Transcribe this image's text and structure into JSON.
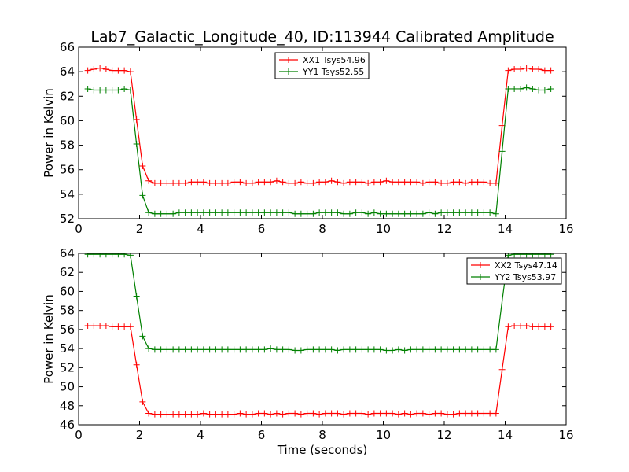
{
  "title": "Lab7_Galactic_Longitude_40, ID:113944 Calibrated Amplitude",
  "colors": {
    "red": "#ff0000",
    "green": "#008000"
  },
  "chart_data": [
    {
      "type": "line",
      "xlim": [
        0,
        16
      ],
      "ylim": [
        52,
        66
      ],
      "xticks": [
        0,
        2,
        4,
        6,
        8,
        10,
        12,
        14,
        16
      ],
      "yticks": [
        52,
        54,
        56,
        58,
        60,
        62,
        64,
        66
      ],
      "xlabel": "",
      "ylabel": "Power in Kelvin",
      "legend_placement": "upper-center",
      "x": [
        0.3,
        0.5,
        0.7,
        0.9,
        1.1,
        1.3,
        1.5,
        1.7,
        1.9,
        2.1,
        2.3,
        2.5,
        2.7,
        2.9,
        3.1,
        3.3,
        3.5,
        3.7,
        3.9,
        4.1,
        4.3,
        4.5,
        4.7,
        4.9,
        5.1,
        5.3,
        5.5,
        5.7,
        5.9,
        6.1,
        6.3,
        6.5,
        6.7,
        6.9,
        7.1,
        7.3,
        7.5,
        7.7,
        7.9,
        8.1,
        8.3,
        8.5,
        8.7,
        8.9,
        9.1,
        9.3,
        9.5,
        9.7,
        9.9,
        10.1,
        10.3,
        10.5,
        10.7,
        10.9,
        11.1,
        11.3,
        11.5,
        11.7,
        11.9,
        12.1,
        12.3,
        12.5,
        12.7,
        12.9,
        13.1,
        13.3,
        13.5,
        13.7,
        13.9,
        14.1,
        14.3,
        14.5,
        14.7,
        14.9,
        15.1,
        15.3,
        15.5
      ],
      "series": [
        {
          "name": "XX1 Tsys54.96",
          "color": "#ff0000",
          "values": [
            64.1,
            64.2,
            64.3,
            64.2,
            64.1,
            64.1,
            64.1,
            64.0,
            60.1,
            56.3,
            55.1,
            54.9,
            54.9,
            54.9,
            54.9,
            54.9,
            54.9,
            55.0,
            55.0,
            55.0,
            54.9,
            54.9,
            54.9,
            54.9,
            55.0,
            55.0,
            54.9,
            54.9,
            55.0,
            55.0,
            55.0,
            55.1,
            55.0,
            54.9,
            54.9,
            55.0,
            54.9,
            54.9,
            55.0,
            55.0,
            55.1,
            55.0,
            54.9,
            55.0,
            55.0,
            55.0,
            54.9,
            55.0,
            55.0,
            55.1,
            55.0,
            55.0,
            55.0,
            55.0,
            55.0,
            54.9,
            55.0,
            55.0,
            54.9,
            54.9,
            55.0,
            55.0,
            54.9,
            55.0,
            55.0,
            55.0,
            54.9,
            54.9,
            59.6,
            64.1,
            64.2,
            64.2,
            64.3,
            64.2,
            64.2,
            64.1,
            64.1
          ]
        },
        {
          "name": "YY1 Tsys52.55",
          "color": "#008000",
          "values": [
            62.6,
            62.5,
            62.5,
            62.5,
            62.5,
            62.5,
            62.6,
            62.5,
            58.1,
            53.9,
            52.5,
            52.4,
            52.4,
            52.4,
            52.4,
            52.5,
            52.5,
            52.5,
            52.5,
            52.5,
            52.5,
            52.5,
            52.5,
            52.5,
            52.5,
            52.5,
            52.5,
            52.5,
            52.5,
            52.5,
            52.5,
            52.5,
            52.5,
            52.5,
            52.4,
            52.4,
            52.4,
            52.4,
            52.5,
            52.5,
            52.5,
            52.5,
            52.4,
            52.4,
            52.5,
            52.5,
            52.4,
            52.5,
            52.4,
            52.4,
            52.4,
            52.4,
            52.4,
            52.4,
            52.4,
            52.4,
            52.5,
            52.4,
            52.5,
            52.5,
            52.5,
            52.5,
            52.5,
            52.5,
            52.5,
            52.5,
            52.5,
            52.4,
            57.5,
            62.6,
            62.6,
            62.6,
            62.7,
            62.6,
            62.5,
            62.5,
            62.6
          ]
        }
      ]
    },
    {
      "type": "line",
      "xlim": [
        0,
        16
      ],
      "ylim": [
        46,
        64
      ],
      "xticks": [
        0,
        2,
        4,
        6,
        8,
        10,
        12,
        14,
        16
      ],
      "yticks": [
        46,
        48,
        50,
        52,
        54,
        56,
        58,
        60,
        62,
        64
      ],
      "xlabel": "Time (seconds)",
      "ylabel": "Power in Kelvin",
      "legend_placement": "upper-right",
      "x": [
        0.3,
        0.5,
        0.7,
        0.9,
        1.1,
        1.3,
        1.5,
        1.7,
        1.9,
        2.1,
        2.3,
        2.5,
        2.7,
        2.9,
        3.1,
        3.3,
        3.5,
        3.7,
        3.9,
        4.1,
        4.3,
        4.5,
        4.7,
        4.9,
        5.1,
        5.3,
        5.5,
        5.7,
        5.9,
        6.1,
        6.3,
        6.5,
        6.7,
        6.9,
        7.1,
        7.3,
        7.5,
        7.7,
        7.9,
        8.1,
        8.3,
        8.5,
        8.7,
        8.9,
        9.1,
        9.3,
        9.5,
        9.7,
        9.9,
        10.1,
        10.3,
        10.5,
        10.7,
        10.9,
        11.1,
        11.3,
        11.5,
        11.7,
        11.9,
        12.1,
        12.3,
        12.5,
        12.7,
        12.9,
        13.1,
        13.3,
        13.5,
        13.7,
        13.9,
        14.1,
        14.3,
        14.5,
        14.7,
        14.9,
        15.1,
        15.3,
        15.5
      ],
      "series": [
        {
          "name": "XX2 Tsys47.14",
          "color": "#ff0000",
          "values": [
            56.4,
            56.4,
            56.4,
            56.4,
            56.3,
            56.3,
            56.3,
            56.3,
            52.3,
            48.4,
            47.2,
            47.1,
            47.1,
            47.1,
            47.1,
            47.1,
            47.1,
            47.1,
            47.1,
            47.2,
            47.1,
            47.1,
            47.1,
            47.1,
            47.1,
            47.2,
            47.1,
            47.1,
            47.2,
            47.2,
            47.1,
            47.2,
            47.1,
            47.2,
            47.2,
            47.1,
            47.2,
            47.2,
            47.1,
            47.2,
            47.2,
            47.2,
            47.1,
            47.2,
            47.2,
            47.2,
            47.1,
            47.2,
            47.2,
            47.2,
            47.2,
            47.1,
            47.2,
            47.1,
            47.2,
            47.2,
            47.1,
            47.2,
            47.2,
            47.1,
            47.1,
            47.2,
            47.2,
            47.2,
            47.2,
            47.2,
            47.2,
            47.2,
            51.8,
            56.3,
            56.4,
            56.4,
            56.4,
            56.3,
            56.3,
            56.3,
            56.3
          ]
        },
        {
          "name": "YY2 Tsys53.97",
          "color": "#008000",
          "values": [
            63.9,
            63.9,
            63.9,
            63.9,
            63.9,
            63.9,
            63.9,
            63.8,
            59.5,
            55.3,
            54.0,
            53.9,
            53.9,
            53.9,
            53.9,
            53.9,
            53.9,
            53.9,
            53.9,
            53.9,
            53.9,
            53.9,
            53.9,
            53.9,
            53.9,
            53.9,
            53.9,
            53.9,
            53.9,
            53.9,
            54.0,
            53.9,
            53.9,
            53.9,
            53.8,
            53.8,
            53.9,
            53.9,
            53.9,
            53.9,
            53.9,
            53.8,
            53.9,
            53.9,
            53.9,
            53.9,
            53.9,
            53.9,
            53.9,
            53.8,
            53.8,
            53.9,
            53.8,
            53.9,
            53.9,
            53.9,
            53.9,
            53.9,
            53.9,
            53.9,
            53.9,
            53.9,
            53.9,
            53.9,
            53.9,
            53.9,
            53.9,
            53.9,
            59.0,
            63.8,
            63.9,
            63.9,
            63.9,
            63.9,
            63.9,
            63.9,
            63.9
          ]
        }
      ]
    }
  ]
}
